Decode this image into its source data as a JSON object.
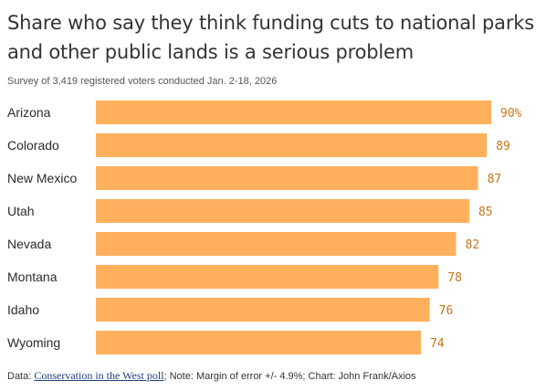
{
  "chart_data": {
    "type": "bar",
    "orientation": "horizontal",
    "title": "Share who say they think funding cuts to national parks and other public lands is a serious problem",
    "subtitle": "Survey of 3,419 registered voters conducted Jan. 2-18, 2026",
    "categories": [
      "Arizona",
      "Colorado",
      "New Mexico",
      "Utah",
      "Nevada",
      "Montana",
      "Idaho",
      "Wyoming"
    ],
    "values": [
      90,
      89,
      87,
      85,
      82,
      78,
      76,
      74
    ],
    "value_labels": [
      "90%",
      "89",
      "87",
      "85",
      "82",
      "78",
      "76",
      "74"
    ],
    "xlim": [
      0,
      90
    ],
    "grid": false,
    "legend": "none",
    "bar_color": "#ffb05c",
    "label_color": "#c8741a"
  },
  "footer": {
    "data_prefix": "Data: ",
    "source_link": "Conservation in the West poll",
    "rest": "; Note: Margin of error +/- 4.9%; Chart: John Frank/Axios"
  }
}
